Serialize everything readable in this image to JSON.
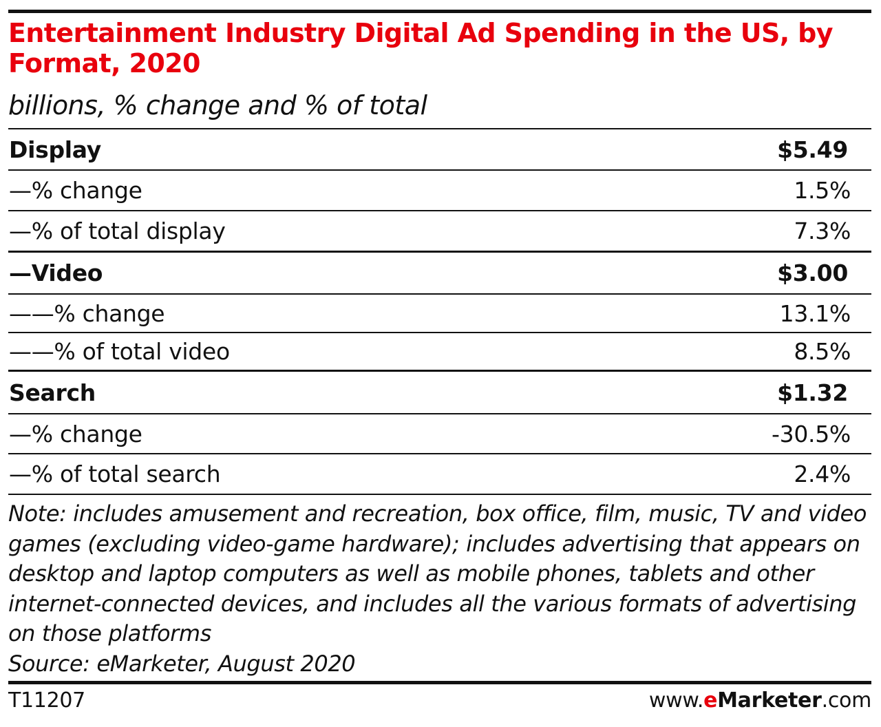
{
  "chart_data": {
    "type": "table",
    "title": "Entertainment Industry Digital Ad Spending in the US, by Format, 2020",
    "subtitle": "billions, % change and % of total",
    "rows": [
      {
        "label": "Display",
        "value": "$5.49",
        "kind": "header"
      },
      {
        "label": "—% change",
        "value": "1.5%",
        "kind": "sub"
      },
      {
        "label": "—% of total display",
        "value": "7.3%",
        "kind": "sub"
      },
      {
        "label": "—Video",
        "value": "$3.00",
        "kind": "header"
      },
      {
        "label": "——% change",
        "value": "13.1%",
        "kind": "sub"
      },
      {
        "label": "——% of total video",
        "value": "8.5%",
        "kind": "sub"
      },
      {
        "label": "Search",
        "value": "$1.32",
        "kind": "header"
      },
      {
        "label": "—% change",
        "value": "-30.5%",
        "kind": "sub"
      },
      {
        "label": "—% of total search",
        "value": "2.4%",
        "kind": "sub"
      }
    ],
    "note": "Note: includes amusement and recreation, box office, film, music, TV and video games (excluding video-game hardware); includes advertising that appears on desktop and laptop computers as well as mobile phones, tablets and other internet-connected devices, and includes all the various formats of advertising on those platforms",
    "source": "Source: eMarketer, August 2020"
  },
  "footer": {
    "code": "T11207",
    "logo_prefix": "www.",
    "logo_accent": "e",
    "logo_brand": "Marketer",
    "logo_suffix": ".com"
  },
  "colors": {
    "title": "#e8000d",
    "text": "#111111",
    "rule": "#111111"
  }
}
